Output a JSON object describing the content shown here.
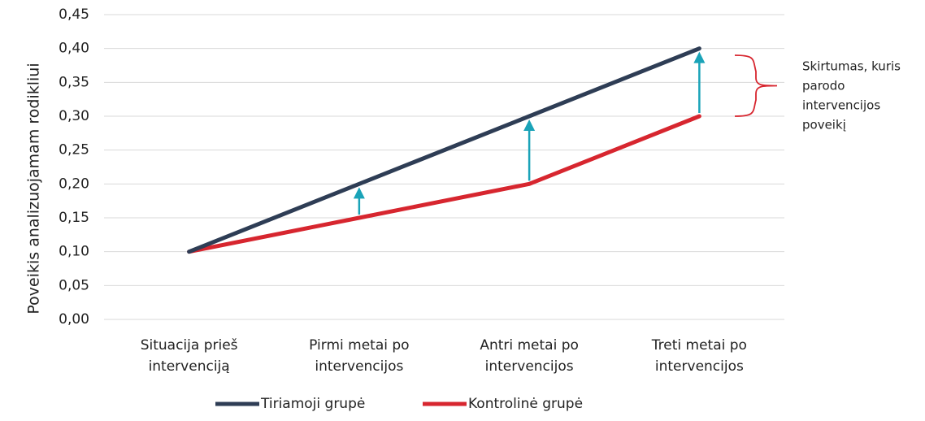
{
  "chart_data": {
    "type": "line",
    "ylabel": "Poveikis analizuojamam rodikliui",
    "categories": [
      [
        "Situacija prieš",
        "intervenciją"
      ],
      [
        "Pirmi metai po",
        "intervencijos"
      ],
      [
        "Antri metai po",
        "intervencijos"
      ],
      [
        "Treti metai po",
        "intervencijos"
      ]
    ],
    "series": [
      {
        "name": "Tiriamoji grupė",
        "color": "#2e3d55",
        "values": [
          0.1,
          0.2,
          0.3,
          0.4
        ]
      },
      {
        "name": "Kontrolinė grupė",
        "color": "#d7262f",
        "values": [
          0.1,
          0.15,
          0.2,
          0.3
        ]
      }
    ],
    "ylim": [
      0,
      0.45
    ],
    "yticks": [
      {
        "value": 0,
        "label": "0,00"
      },
      {
        "value": 0.05,
        "label": "0,05"
      },
      {
        "value": 0.1,
        "label": "0,10"
      },
      {
        "value": 0.15,
        "label": "0,15"
      },
      {
        "value": 0.2,
        "label": "0,20"
      },
      {
        "value": 0.25,
        "label": "0,25"
      },
      {
        "value": 0.3,
        "label": "0,30"
      },
      {
        "value": 0.35,
        "label": "0,35"
      },
      {
        "value": 0.4,
        "label": "0,40"
      },
      {
        "value": 0.45,
        "label": "0,45"
      }
    ],
    "grid": true,
    "legend": "bottom",
    "arrow_color": "#1aa3b8",
    "annotation": {
      "lines": [
        "Skirtumas, kuris",
        "parodo",
        "intervencijos",
        "poveikį"
      ],
      "color": "#d7262f"
    }
  }
}
